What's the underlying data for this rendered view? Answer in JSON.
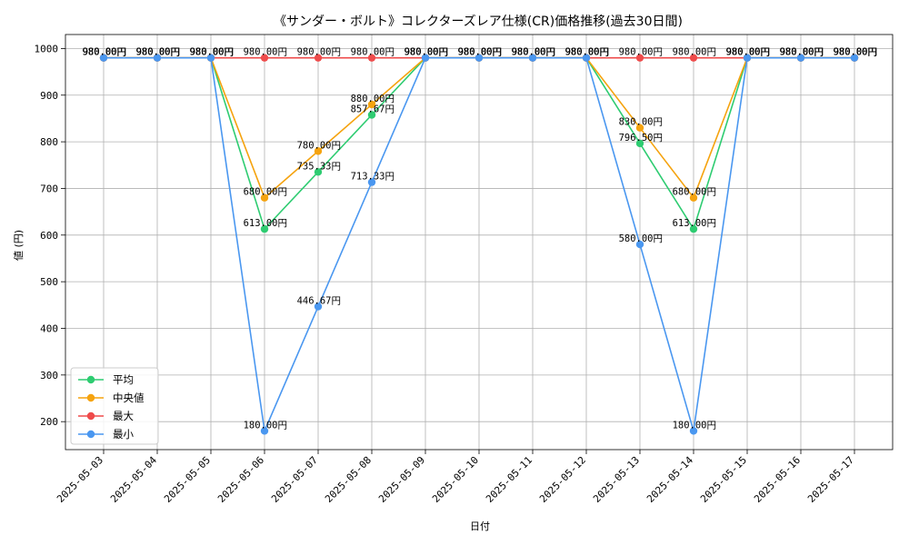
{
  "chart_data": {
    "type": "line",
    "title": "《サンダー・ボルト》コレクターズレア仕様(CR)価格推移(過去30日間)",
    "xlabel": "日付",
    "ylabel": "値 (円)",
    "ylim": [
      140,
      1030
    ],
    "yticks": [
      200,
      300,
      400,
      500,
      600,
      700,
      800,
      900,
      1000
    ],
    "grid": true,
    "legend_position": "lower-left",
    "categories": [
      "2025-05-03",
      "2025-05-04",
      "2025-05-05",
      "2025-05-06",
      "2025-05-07",
      "2025-05-08",
      "2025-05-09",
      "2025-05-10",
      "2025-05-11",
      "2025-05-12",
      "2025-05-13",
      "2025-05-14",
      "2025-05-15",
      "2025-05-16",
      "2025-05-17"
    ],
    "series": [
      {
        "name": "平均",
        "color": "#2ecc71",
        "values": [
          980,
          980,
          980,
          613,
          735.33,
          857.67,
          980,
          980,
          980,
          980,
          796.5,
          613,
          980,
          980,
          980
        ],
        "labels": [
          "980.00円",
          "980.00円",
          "980.00円",
          "613.00円",
          "735.33円",
          "857.67円",
          "980.00円",
          "980.00円",
          "980.00円",
          "980.00円",
          "796.50円",
          "613.00円",
          "980.00円",
          "980.00円",
          "980.00円"
        ]
      },
      {
        "name": "中央値",
        "color": "#f5a30f",
        "values": [
          980,
          980,
          980,
          680,
          780,
          880,
          980,
          980,
          980,
          980,
          830,
          680,
          980,
          980,
          980
        ],
        "labels": [
          "980.00円",
          "980.00円",
          "980.00円",
          "680.00円",
          "780.00円",
          "880.00円",
          "980.00円",
          "980.00円",
          "980.00円",
          "980.00円",
          "830.00円",
          "680.00円",
          "980.00円",
          "980.00円",
          "980.00円"
        ]
      },
      {
        "name": "最大",
        "color": "#ef4b4b",
        "values": [
          980,
          980,
          980,
          980,
          980,
          980,
          980,
          980,
          980,
          980,
          980,
          980,
          980,
          980,
          980
        ],
        "labels": [
          "980.00円",
          "980.00円",
          "980.00円",
          "980.00円",
          "980.00円",
          "980.00円",
          "980.00円",
          "980.00円",
          "980.00円",
          "980.00円",
          "980.00円",
          "980.00円",
          "980.00円",
          "980.00円",
          "980.00円"
        ]
      },
      {
        "name": "最小",
        "color": "#4a97f0",
        "values": [
          980,
          980,
          980,
          180,
          446.67,
          713.33,
          980,
          980,
          980,
          980,
          580,
          180,
          980,
          980,
          980
        ],
        "labels": [
          "980.00円",
          "980.00円",
          "980.00円",
          "180.00円",
          "446.67円",
          "713.33円",
          "980.00円",
          "980.00円",
          "980.00円",
          "980.00円",
          "580.00円",
          "180.00円",
          "980.00円",
          "980.00円",
          "980.00円"
        ]
      }
    ]
  }
}
